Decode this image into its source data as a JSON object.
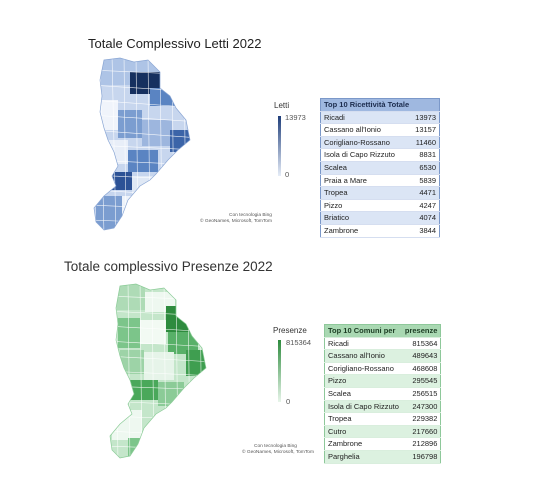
{
  "letti": {
    "title": "Totale Complessivo Letti  2022",
    "legend": {
      "title": "Letti",
      "max": "13973",
      "min": "0",
      "color_high": "#1f3e7a",
      "color_low": "#e6edf8"
    },
    "credit": [
      "Con tecnologia Bing",
      "© GeoNames, Microsoft, TomTom"
    ],
    "table": {
      "headers": [
        "Top 10 Ricettività Totale",
        ""
      ],
      "rows": [
        {
          "name": "Ricadi",
          "value": "13973"
        },
        {
          "name": "Cassano all'Ionio",
          "value": "13157"
        },
        {
          "name": "Corigliano-Rossano",
          "value": "11460"
        },
        {
          "name": "Isola di Capo Rizzuto",
          "value": "8831"
        },
        {
          "name": "Scalea",
          "value": "6530"
        },
        {
          "name": "Praia a Mare",
          "value": "5839"
        },
        {
          "name": "Tropea",
          "value": "4471"
        },
        {
          "name": "Pizzo",
          "value": "4247"
        },
        {
          "name": "Briatico",
          "value": "4074"
        },
        {
          "name": "Zambrone",
          "value": "3844"
        }
      ]
    }
  },
  "presenze": {
    "title": "Totale complessivo Presenze 2022",
    "legend": {
      "title": "Presenze",
      "max": "815364",
      "min": "0",
      "color_high": "#2e8b3e",
      "color_low": "#e8f5ea"
    },
    "credit": [
      "Con tecnologia Bing",
      "© GeoNames, Microsoft, TomTom"
    ],
    "table": {
      "headers": [
        "Top 10 Comuni per",
        "presenze"
      ],
      "rows": [
        {
          "name": "Ricadi",
          "value": "815364"
        },
        {
          "name": "Cassano all'Ionio",
          "value": "489643"
        },
        {
          "name": "Corigliano-Rossano",
          "value": "468608"
        },
        {
          "name": "Pizzo",
          "value": "295545"
        },
        {
          "name": "Scalea",
          "value": "256515"
        },
        {
          "name": "Isola di Capo Rizzuto",
          "value": "247300"
        },
        {
          "name": "Tropea",
          "value": "229382"
        },
        {
          "name": "Cutro",
          "value": "217660"
        },
        {
          "name": "Zambrone",
          "value": "212896"
        },
        {
          "name": "Parghelia",
          "value": "196798"
        }
      ]
    }
  }
}
